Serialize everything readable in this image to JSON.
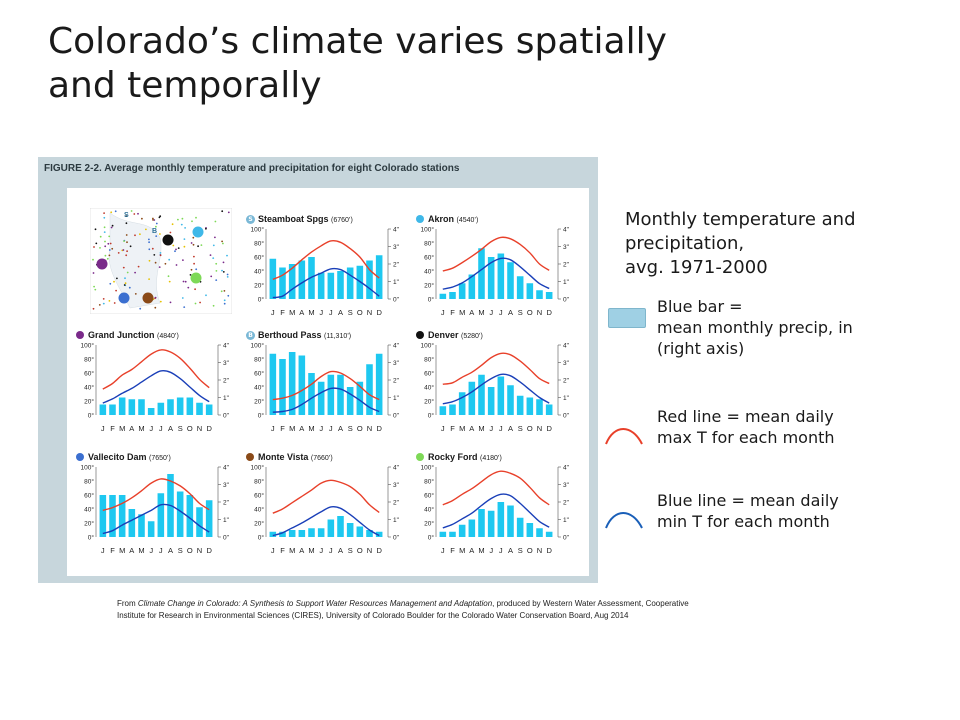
{
  "slide": {
    "title_line1": "Colorado’s climate varies spatially",
    "title_line2": "and temporally"
  },
  "figure": {
    "caption": "FIGURE 2-2. Average monthly temperature and precipitation for eight Colorado stations"
  },
  "legend": {
    "heading_line1": "Monthly temperature and",
    "heading_line2": "precipitation,",
    "heading_line3": "avg. 1971-2000",
    "bar_line1": "Blue bar =",
    "bar_line2": "mean monthly precip, in",
    "bar_line3": "(right axis)",
    "red_line1": "Red line = mean daily",
    "red_line2": "max T for each month",
    "blue_line1": "Blue line = mean daily",
    "blue_line2": "min T for each month"
  },
  "credit": {
    "prefix": "From ",
    "source_title": "Climate Change in Colorado: A Synthesis to Support Water Resources Management and Adaptation",
    "rest_line1": ", produced by Western Water Assessment, Cooperative",
    "line2": "Institute for Research in Environmental Sciences (CIRES), University of Colorado Boulder for the Colorado Water Conservation Board,  Aug 2014"
  },
  "colors": {
    "bar": "#1ec8f0",
    "max_line": "#e8402a",
    "min_line": "#1a3fb8",
    "figure_bg": "#c7d6dc"
  },
  "chart_data": [
    {
      "type": "bar+line",
      "station": "Steamboat Spgs",
      "elevation": "(6760’)",
      "marker_letter": "S",
      "marker_color": "#7ab8d6",
      "months": [
        "J",
        "F",
        "M",
        "A",
        "M",
        "J",
        "J",
        "A",
        "S",
        "O",
        "N",
        "D"
      ],
      "precip": [
        2.3,
        1.8,
        2.0,
        2.2,
        2.4,
        1.5,
        1.5,
        1.6,
        1.8,
        1.9,
        2.2,
        2.5
      ],
      "tmax": [
        28,
        34,
        44,
        56,
        67,
        76,
        83,
        81,
        72,
        60,
        42,
        30
      ],
      "tmin": [
        2,
        4,
        14,
        23,
        31,
        37,
        43,
        42,
        34,
        25,
        15,
        4
      ],
      "left_ticks": [
        "100°",
        "80°",
        "60°",
        "40°",
        "20°",
        "0°"
      ],
      "right_ticks": [
        "4\"",
        "3\"",
        "2\"",
        "1\"",
        "0\""
      ],
      "ylim_temp": [
        0,
        100
      ],
      "ylim_precip": [
        0,
        4
      ]
    },
    {
      "type": "bar+line",
      "station": "Akron",
      "elevation": "(4540’)",
      "marker_color": "#3fb8e8",
      "months": [
        "J",
        "F",
        "M",
        "A",
        "M",
        "J",
        "J",
        "A",
        "S",
        "O",
        "N",
        "D"
      ],
      "precip": [
        0.3,
        0.4,
        0.9,
        1.4,
        2.9,
        2.4,
        2.6,
        2.1,
        1.3,
        0.9,
        0.5,
        0.4
      ],
      "tmax": [
        40,
        44,
        52,
        61,
        71,
        82,
        88,
        86,
        78,
        66,
        50,
        41
      ],
      "tmin": [
        14,
        17,
        23,
        32,
        42,
        52,
        58,
        56,
        46,
        34,
        22,
        15
      ],
      "left_ticks": [
        "100°",
        "80°",
        "60°",
        "40°",
        "20°",
        "0°"
      ],
      "right_ticks": [
        "4\"",
        "3\"",
        "2\"",
        "1\"",
        "0\""
      ],
      "ylim_temp": [
        0,
        100
      ],
      "ylim_precip": [
        0,
        4
      ]
    },
    {
      "type": "bar+line",
      "station": "Grand Junction",
      "elevation": "(4840’)",
      "marker_color": "#7a2a8a",
      "months": [
        "J",
        "F",
        "M",
        "A",
        "M",
        "J",
        "J",
        "A",
        "S",
        "O",
        "N",
        "D"
      ],
      "precip": [
        0.6,
        0.6,
        1.0,
        0.9,
        0.9,
        0.4,
        0.7,
        0.9,
        1.0,
        1.0,
        0.7,
        0.6
      ],
      "tmax": [
        37,
        45,
        57,
        65,
        76,
        87,
        93,
        90,
        81,
        67,
        51,
        39
      ],
      "tmin": [
        17,
        23,
        31,
        38,
        47,
        56,
        63,
        61,
        52,
        40,
        28,
        19
      ],
      "left_ticks": [
        "100°",
        "80°",
        "60°",
        "40°",
        "20°",
        "0°"
      ],
      "right_ticks": [
        "4\"",
        "3\"",
        "2\"",
        "1\"",
        "0\""
      ],
      "ylim_temp": [
        0,
        100
      ],
      "ylim_precip": [
        0,
        4
      ]
    },
    {
      "type": "bar+line",
      "station": "Berthoud Pass",
      "elevation": "(11,310’)",
      "marker_letter": "B",
      "marker_color": "#7ab8d6",
      "months": [
        "J",
        "F",
        "M",
        "A",
        "M",
        "J",
        "J",
        "A",
        "S",
        "O",
        "N",
        "D"
      ],
      "precip": [
        3.5,
        3.2,
        3.6,
        3.4,
        2.4,
        1.9,
        2.3,
        2.3,
        1.6,
        1.9,
        2.9,
        3.5
      ],
      "tmax": [
        22,
        24,
        28,
        35,
        44,
        55,
        62,
        60,
        52,
        41,
        29,
        22
      ],
      "tmin": [
        4,
        5,
        8,
        15,
        24,
        32,
        38,
        37,
        30,
        21,
        11,
        5
      ],
      "left_ticks": [
        "100°",
        "80°",
        "60°",
        "40°",
        "20°",
        "0°"
      ],
      "right_ticks": [
        "4\"",
        "3\"",
        "2\"",
        "1\"",
        "0\""
      ],
      "ylim_temp": [
        0,
        100
      ],
      "ylim_precip": [
        0,
        4
      ]
    },
    {
      "type": "bar+line",
      "station": "Denver",
      "elevation": "(5280’)",
      "marker_color": "#111111",
      "months": [
        "J",
        "F",
        "M",
        "A",
        "M",
        "J",
        "J",
        "A",
        "S",
        "O",
        "N",
        "D"
      ],
      "precip": [
        0.5,
        0.6,
        1.3,
        1.9,
        2.3,
        1.6,
        2.2,
        1.7,
        1.1,
        1.0,
        0.9,
        0.6
      ],
      "tmax": [
        44,
        46,
        54,
        61,
        71,
        82,
        88,
        86,
        77,
        65,
        52,
        45
      ],
      "tmin": [
        16,
        19,
        25,
        33,
        43,
        52,
        58,
        56,
        47,
        36,
        25,
        17
      ],
      "left_ticks": [
        "100°",
        "80°",
        "60°",
        "40°",
        "20°",
        "0°"
      ],
      "right_ticks": [
        "4\"",
        "3\"",
        "2\"",
        "1\"",
        "0\""
      ],
      "ylim_temp": [
        0,
        100
      ],
      "ylim_precip": [
        0,
        4
      ]
    },
    {
      "type": "bar+line",
      "station": "Vallecito Dam",
      "elevation": "(7650’)",
      "marker_color": "#3b6fd0",
      "months": [
        "J",
        "F",
        "M",
        "A",
        "M",
        "J",
        "J",
        "A",
        "S",
        "O",
        "N",
        "D"
      ],
      "precip": [
        2.4,
        2.4,
        2.4,
        1.6,
        1.3,
        0.9,
        2.5,
        3.6,
        2.6,
        2.4,
        1.7,
        2.1
      ],
      "tmax": [
        38,
        42,
        48,
        56,
        66,
        77,
        83,
        80,
        73,
        62,
        48,
        39
      ],
      "tmin": [
        5,
        9,
        17,
        24,
        31,
        38,
        46,
        45,
        37,
        27,
        16,
        7
      ],
      "left_ticks": [
        "100°",
        "80°",
        "60°",
        "40°",
        "20°",
        "0°"
      ],
      "right_ticks": [
        "4\"",
        "3\"",
        "2\"",
        "1\"",
        "0\""
      ],
      "ylim_temp": [
        0,
        100
      ],
      "ylim_precip": [
        0,
        4
      ]
    },
    {
      "type": "bar+line",
      "station": "Monte Vista",
      "elevation": "(7660’)",
      "marker_color": "#8a4a18",
      "months": [
        "J",
        "F",
        "M",
        "A",
        "M",
        "J",
        "J",
        "A",
        "S",
        "O",
        "N",
        "D"
      ],
      "precip": [
        0.3,
        0.3,
        0.4,
        0.4,
        0.5,
        0.5,
        1.0,
        1.2,
        0.8,
        0.6,
        0.4,
        0.3
      ],
      "tmax": [
        34,
        40,
        49,
        58,
        67,
        77,
        81,
        78,
        72,
        61,
        46,
        35
      ],
      "tmin": [
        2,
        6,
        13,
        20,
        28,
        36,
        43,
        41,
        32,
        21,
        10,
        2
      ],
      "left_ticks": [
        "100°",
        "80°",
        "60°",
        "40°",
        "20°",
        "0°"
      ],
      "right_ticks": [
        "4\"",
        "3\"",
        "2\"",
        "1\"",
        "0\""
      ],
      "ylim_temp": [
        0,
        100
      ],
      "ylim_precip": [
        0,
        4
      ]
    },
    {
      "type": "bar+line",
      "station": "Rocky Ford",
      "elevation": "(4180’)",
      "marker_color": "#7ed957",
      "months": [
        "J",
        "F",
        "M",
        "A",
        "M",
        "J",
        "J",
        "A",
        "S",
        "O",
        "N",
        "D"
      ],
      "precip": [
        0.3,
        0.3,
        0.7,
        1.0,
        1.6,
        1.5,
        2.0,
        1.8,
        1.1,
        0.8,
        0.5,
        0.3
      ],
      "tmax": [
        46,
        52,
        61,
        69,
        79,
        89,
        94,
        91,
        84,
        71,
        56,
        46
      ],
      "tmin": [
        13,
        18,
        26,
        34,
        45,
        55,
        61,
        59,
        48,
        35,
        22,
        14
      ],
      "left_ticks": [
        "100°",
        "80°",
        "60°",
        "40°",
        "20°",
        "0°"
      ],
      "right_ticks": [
        "4\"",
        "3\"",
        "2\"",
        "1\"",
        "0\""
      ],
      "ylim_temp": [
        0,
        100
      ],
      "ylim_precip": [
        0,
        4
      ]
    }
  ]
}
